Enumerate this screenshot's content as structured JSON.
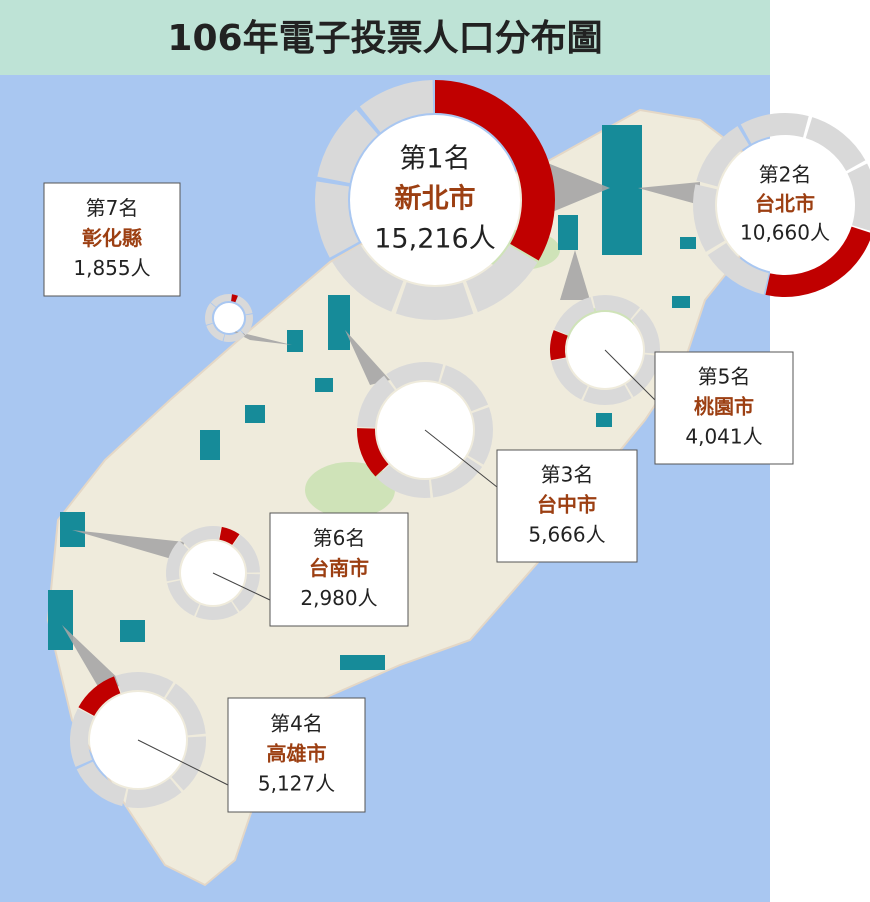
{
  "chart_data": {
    "type": "donut",
    "title": "106年電子投票人口分布圖",
    "ranks": [
      "第1名",
      "第2名",
      "第3名",
      "第4名",
      "第5名",
      "第6名",
      "第7名"
    ],
    "categories": [
      "新北市",
      "台北市",
      "台中市",
      "高雄市",
      "桃園市",
      "台南市",
      "彰化縣"
    ],
    "values": [
      15216,
      10660,
      5666,
      5127,
      4041,
      2980,
      1855
    ],
    "value_labels": [
      "15,216人",
      "10,660人",
      "5,666人",
      "5,127人",
      "4,041人",
      "2,980人",
      "1,855人"
    ],
    "color": "#c00000",
    "rest_color": "#d9d9d9"
  }
}
